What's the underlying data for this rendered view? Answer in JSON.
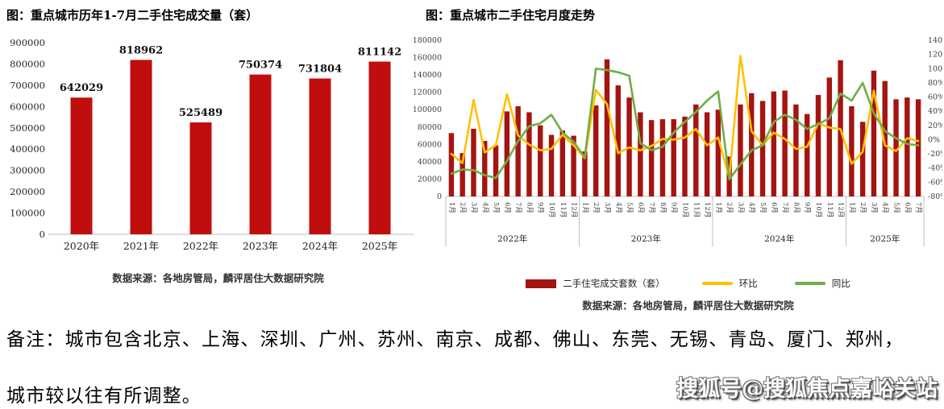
{
  "note": {
    "line1": "备注：城市包含北京、上海、深圳、广州、苏州、南京、成都、佛山、东莞、无锡、青岛、厦门、郑州，",
    "line2": "城市较以往有所调整。"
  },
  "watermark": {
    "text": "搜狐号@搜狐焦点嘉峪关站"
  },
  "chart_data": [
    {
      "type": "bar",
      "title": "图：重点城市历年1-7月二手住宅成交量（套）",
      "categories": [
        "2020年",
        "2021年",
        "2022年",
        "2023年",
        "2024年",
        "2025年"
      ],
      "values": [
        642029,
        818962,
        525489,
        750374,
        731804,
        811142
      ],
      "bar_color": "#c00e0e",
      "ylim": [
        0,
        900000
      ],
      "yticks": [
        0,
        100000,
        200000,
        300000,
        400000,
        500000,
        600000,
        700000,
        800000,
        900000
      ],
      "grid": false,
      "legend_position": "none",
      "source": "数据来源：各地房管局，麟评居住大数据研究院"
    },
    {
      "type": "combo_bar_line",
      "title": "图：重点城市二手住宅月度走势",
      "months": [
        "1月",
        "2月",
        "3月",
        "4月",
        "5月",
        "6月",
        "7月",
        "8月",
        "9月",
        "10月",
        "11月",
        "12月",
        "1月",
        "2月",
        "3月",
        "4月",
        "5月",
        "6月",
        "7月",
        "8月",
        "9月",
        "10月",
        "11月",
        "12月",
        "1月",
        "2月",
        "3月",
        "4月",
        "5月",
        "6月",
        "7月",
        "8月",
        "9月",
        "10月",
        "11月",
        "12月",
        "1月",
        "2月",
        "3月",
        "4月",
        "5月",
        "6月",
        "7月"
      ],
      "year_groups": [
        {
          "label": "2022年",
          "count": 12
        },
        {
          "label": "2023年",
          "count": 12
        },
        {
          "label": "2024年",
          "count": 12
        },
        {
          "label": "2025年",
          "count": 7
        }
      ],
      "left_axis": {
        "min": 0,
        "max": 180000,
        "step": 20000,
        "ticks": [
          0,
          20000,
          40000,
          60000,
          80000,
          100000,
          120000,
          140000,
          160000,
          180000
        ]
      },
      "right_axis": {
        "min": -80,
        "max": 140,
        "step": 20,
        "suffix": "%",
        "ticks": [
          -80,
          -60,
          -40,
          -20,
          0,
          20,
          40,
          60,
          80,
          100,
          120,
          140
        ]
      },
      "grid": false,
      "legend_position": "bottom",
      "source": "数据来源：各地房管局，麟评居住大数据研究院",
      "series": [
        {
          "name": "二手住宅成交套数（套）",
          "type": "bar",
          "axis": "left",
          "color": "#a41410",
          "values": [
            73000,
            50000,
            78000,
            64000,
            59000,
            98000,
            104000,
            97000,
            82000,
            71000,
            76000,
            70000,
            52000,
            105000,
            158000,
            128000,
            114000,
            97000,
            88000,
            89000,
            89000,
            92000,
            106000,
            97000,
            100000,
            46000,
            106000,
            119000,
            110000,
            121000,
            122000,
            106000,
            95000,
            117000,
            137000,
            157000,
            104000,
            86000,
            145000,
            133000,
            112000,
            114000,
            112000
          ]
        },
        {
          "name": "环比",
          "type": "line",
          "axis": "right",
          "color": "#ffc000",
          "values_pct": [
            -20,
            -33,
            56,
            -18,
            -8,
            64,
            6,
            -7,
            -15,
            -13,
            7,
            -8,
            -26,
            70,
            50,
            -19,
            -11,
            -15,
            -9,
            1,
            0,
            3,
            15,
            -8,
            3,
            -54,
            118,
            12,
            -8,
            10,
            1,
            -13,
            -10,
            23,
            17,
            15,
            -34,
            -17,
            69,
            -8,
            -16,
            2,
            -2
          ]
        },
        {
          "name": "同比",
          "type": "line",
          "axis": "right",
          "color": "#70ad47",
          "values_pct": [
            -48,
            -42,
            -43,
            -50,
            -54,
            -30,
            -2,
            19,
            23,
            35,
            10,
            -3,
            -25,
            100,
            98,
            95,
            90,
            -5,
            -15,
            -10,
            10,
            25,
            39,
            55,
            68,
            -56,
            -35,
            -15,
            -8,
            25,
            35,
            28,
            15,
            22,
            30,
            65,
            55,
            80,
            37,
            12,
            2,
            -6,
            -8
          ]
        }
      ]
    }
  ]
}
